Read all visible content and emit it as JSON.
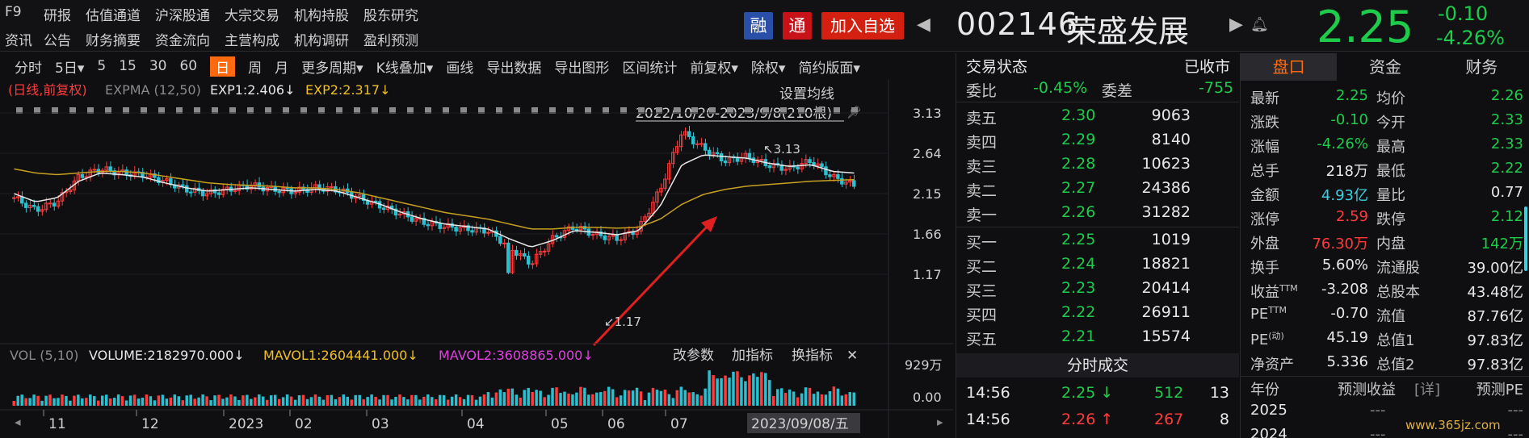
{
  "nav": {
    "row1": [
      "F9",
      "研报",
      "估值通道",
      "沪深股通",
      "大宗交易",
      "机构持股",
      "股东研究"
    ],
    "row2": [
      "资讯",
      "公告",
      "财务摘要",
      "资金流向",
      "主营构成",
      "机构调研",
      "盈利预测"
    ]
  },
  "badges": {
    "rong": "融",
    "tong": "通",
    "add": "加入自选"
  },
  "stock": {
    "code": "002146",
    "name": "荣盛发展",
    "price": "2.25",
    "change": "-0.10",
    "pct": "-4.26%"
  },
  "toolbar": [
    "分时",
    "5日▾",
    "5",
    "15",
    "30",
    "60",
    "日",
    "周",
    "月",
    "更多周期▾",
    "K线叠加▾",
    "画线",
    "导出数据",
    "导出图形",
    "区间统计",
    "前复权▾",
    "除权▾",
    "简约版面▾"
  ],
  "toolbar_active": "日",
  "indicator": {
    "label": "(日线,前复权)",
    "expma": "EXPMA (12,50)",
    "exp1": "EXP1:2.406↓",
    "exp2": "EXP2:2.317↓",
    "setting": "设置均线",
    "range": "2022/10/20-2023/9/8(210根)",
    "high_label": "↖3.13",
    "low_label": "↙1.17"
  },
  "price_axis": [
    "3.13",
    "2.64",
    "2.15",
    "1.66",
    "1.17"
  ],
  "volume": {
    "label": "VOL (5,10)",
    "vol": "VOLUME:2182970.000↓",
    "mavol1": "MAVOL1:2604441.000↓",
    "mavol2": "MAVOL2:3608865.000↓",
    "buttons": [
      "改参数",
      "加指标",
      "换指标"
    ],
    "axis_top": "929万",
    "axis_bottom": "0.00"
  },
  "time_axis": [
    "11",
    "12",
    "2023",
    "02",
    "03",
    "04",
    "05",
    "06",
    "07"
  ],
  "time_cursor": "2023/09/08/五",
  "chart_data": {
    "type": "candlestick",
    "x_range": [
      "2022/10/20",
      "2023/9/8"
    ],
    "bars": 210,
    "ylim": [
      1.17,
      3.13
    ],
    "high": 3.13,
    "low": 1.17,
    "close_path": [
      2.1,
      1.95,
      2.05,
      2.35,
      2.45,
      2.4,
      2.38,
      2.3,
      2.2,
      2.15,
      2.2,
      2.25,
      2.2,
      2.18,
      2.22,
      2.2,
      2.1,
      2.0,
      1.9,
      1.8,
      1.75,
      1.72,
      1.7,
      1.5,
      1.3,
      1.6,
      1.75,
      1.65,
      1.6,
      1.72,
      2.2,
      2.9,
      2.7,
      2.55,
      2.6,
      2.5,
      2.45,
      2.55,
      2.35,
      2.25
    ],
    "ema1": [
      2.15,
      2.05,
      2.1,
      2.3,
      2.4,
      2.38,
      2.35,
      2.28,
      2.22,
      2.18,
      2.2,
      2.22,
      2.2,
      2.18,
      2.2,
      2.18,
      2.1,
      2.02,
      1.92,
      1.84,
      1.78,
      1.75,
      1.72,
      1.6,
      1.5,
      1.58,
      1.7,
      1.68,
      1.65,
      1.7,
      2.0,
      2.5,
      2.62,
      2.6,
      2.58,
      2.52,
      2.48,
      2.5,
      2.42,
      2.4
    ],
    "ema2": [
      2.45,
      2.4,
      2.38,
      2.4,
      2.42,
      2.42,
      2.4,
      2.36,
      2.32,
      2.28,
      2.26,
      2.25,
      2.24,
      2.22,
      2.22,
      2.2,
      2.16,
      2.1,
      2.04,
      1.98,
      1.92,
      1.88,
      1.84,
      1.78,
      1.72,
      1.72,
      1.74,
      1.74,
      1.73,
      1.74,
      1.84,
      2.02,
      2.14,
      2.2,
      2.24,
      2.26,
      2.28,
      2.3,
      2.31,
      2.32
    ]
  },
  "orderbook": {
    "title": "交易状态",
    "status": "已收市",
    "weibi_label": "委比",
    "weibi": "-0.45%",
    "weicha_label": "委差",
    "weicha": "-755",
    "asks": [
      {
        "label": "卖五",
        "price": "2.30",
        "vol": "9063"
      },
      {
        "label": "卖四",
        "price": "2.29",
        "vol": "8140"
      },
      {
        "label": "卖三",
        "price": "2.28",
        "vol": "10623"
      },
      {
        "label": "卖二",
        "price": "2.27",
        "vol": "24386"
      },
      {
        "label": "卖一",
        "price": "2.26",
        "vol": "31282"
      }
    ],
    "bids": [
      {
        "label": "买一",
        "price": "2.25",
        "vol": "1019"
      },
      {
        "label": "买二",
        "price": "2.24",
        "vol": "18821"
      },
      {
        "label": "买三",
        "price": "2.23",
        "vol": "20414"
      },
      {
        "label": "买四",
        "price": "2.22",
        "vol": "26911"
      },
      {
        "label": "买五",
        "price": "2.21",
        "vol": "15574"
      }
    ],
    "ticks_title": "分时成交",
    "ticks": [
      {
        "time": "14:56",
        "price": "2.25",
        "arrow": "↓",
        "vol": "512",
        "n": "13"
      },
      {
        "time": "14:56",
        "price": "2.26",
        "arrow": "↑",
        "vol": "267",
        "n": "8"
      }
    ]
  },
  "rpanel": {
    "tabs": [
      "盘口",
      "资金",
      "财务"
    ],
    "rows": [
      {
        "l1": "最新",
        "v1": "2.25",
        "c1": "green",
        "l2": "均价",
        "v2": "2.26",
        "c2": "green"
      },
      {
        "l1": "涨跌",
        "v1": "-0.10",
        "c1": "green",
        "l2": "今开",
        "v2": "2.33",
        "c2": "green"
      },
      {
        "l1": "涨幅",
        "v1": "-4.26%",
        "c1": "green",
        "l2": "最高",
        "v2": "2.33",
        "c2": "green"
      },
      {
        "l1": "总手",
        "v1": "218万",
        "c1": "white",
        "l2": "最低",
        "v2": "2.22",
        "c2": "green"
      },
      {
        "l1": "金额",
        "v1": "4.93亿",
        "c1": "cyan",
        "l2": "量比",
        "v2": "0.77",
        "c2": "white"
      },
      {
        "l1": "涨停",
        "v1": "2.59",
        "c1": "red",
        "l2": "跌停",
        "v2": "2.12",
        "c2": "green"
      },
      {
        "l1": "外盘",
        "v1": "76.30万",
        "c1": "red",
        "l2": "内盘",
        "v2": "142万",
        "c2": "green"
      },
      {
        "l1": "换手",
        "v1": "5.60%",
        "c1": "white",
        "l2": "流通股",
        "v2": "39.00亿",
        "c2": "white"
      },
      {
        "l1": "收益",
        "sup1": "TTM",
        "v1": "-3.208",
        "c1": "white",
        "l2": "总股本",
        "v2": "43.48亿",
        "c2": "white"
      },
      {
        "l1": "PE",
        "sup1": "TTM",
        "v1": "-0.70",
        "c1": "white",
        "l2": "流值",
        "v2": "87.76亿",
        "c2": "white"
      },
      {
        "l1": "PE",
        "sup1": "(动)",
        "v1": "45.19",
        "c1": "white",
        "l2": "总值1",
        "v2": "97.83亿",
        "c2": "white"
      },
      {
        "l1": "净资产",
        "v1": "5.336",
        "c1": "white",
        "l2": "总值2",
        "v2": "97.83亿",
        "c2": "white"
      }
    ],
    "forecast_header": {
      "year": "年份",
      "eps": "预测收益",
      "detail": "[详]",
      "pe": "预测PE"
    },
    "forecast": [
      {
        "year": "2025",
        "eps": "---",
        "pe": "---"
      },
      {
        "year": "2024",
        "eps": "---",
        "pe": "---"
      }
    ]
  },
  "watermark": "www.365jz.com",
  "colors": {
    "up": "#ff3b3b",
    "down": "#1ecb4a",
    "accent": "#ff6a10",
    "ema1": "#e8e8e8",
    "ema2": "#f0c020"
  }
}
